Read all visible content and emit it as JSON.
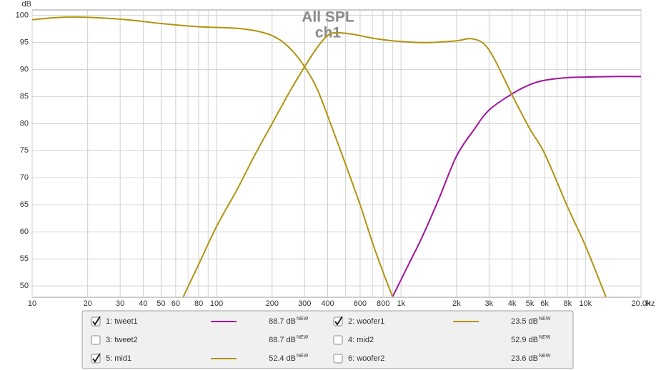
{
  "chart_data": {
    "type": "line",
    "title": "All SPL",
    "subtitle": "ch1",
    "y_label": "dB",
    "x_label": "Hz",
    "log_x": true,
    "grid": true,
    "xlim": [
      10,
      20000
    ],
    "ylim": [
      47.9,
      101
    ],
    "yticks": [
      50,
      55,
      60,
      65,
      70,
      75,
      80,
      85,
      90,
      95,
      100
    ],
    "xticks": [
      10,
      20,
      30,
      40,
      50,
      60,
      80,
      100,
      200,
      300,
      400,
      600,
      800,
      {
        "value": 1000,
        "label": "1k"
      },
      {
        "value": 2000,
        "label": "2k"
      },
      {
        "value": 3000,
        "label": "3k"
      },
      {
        "value": 4000,
        "label": "4k"
      },
      {
        "value": 5000,
        "label": "5k"
      },
      {
        "value": 6000,
        "label": "6k"
      },
      {
        "value": 8000,
        "label": "8k"
      },
      {
        "value": 10000,
        "label": "10k"
      },
      {
        "value": 20000,
        "label": "20.0k"
      }
    ],
    "x_minor_ticks": [
      70,
      90,
      500,
      700,
      900,
      7000,
      9000
    ],
    "series": [
      {
        "name": "1: tweet1",
        "checked": true,
        "color": "#a0139f",
        "level": "88.7 dB",
        "badge": "NEW",
        "x": [
          900,
          1100,
          1300,
          1600,
          2000,
          2500,
          3000,
          4000,
          5000,
          6000,
          8000,
          10000,
          14000,
          20000
        ],
        "values": [
          48,
          54,
          59,
          66,
          74,
          79,
          82.5,
          85.5,
          87.2,
          88,
          88.5,
          88.6,
          88.7,
          88.7
        ]
      },
      {
        "name": "2: woofer1",
        "checked": true,
        "color": "#b09410",
        "level": "23.5 dB",
        "badge": "NEW",
        "x": [
          10,
          16,
          30,
          50,
          80,
          130,
          180,
          220,
          260,
          300,
          350,
          420,
          500,
          600,
          700,
          800,
          900
        ],
        "values": [
          99.2,
          99.7,
          99.3,
          98.5,
          97.9,
          97.6,
          96.8,
          95.5,
          93.3,
          90.5,
          86.5,
          79.5,
          72.5,
          65,
          58,
          52.5,
          48
        ]
      },
      {
        "name": "3: tweet2",
        "checked": false,
        "color": "#34a04a",
        "level": "88.7 dB",
        "badge": "NEW"
      },
      {
        "name": "4: mid2",
        "checked": false,
        "color": "#2e8a2e",
        "level": "52.9 dB",
        "badge": "NEW"
      },
      {
        "name": "5: mid1",
        "checked": true,
        "color": "#b09410",
        "level": "52.4 dB",
        "badge": "NEW",
        "x": [
          66,
          80,
          100,
          130,
          160,
          200,
          250,
          300,
          350,
          400,
          450,
          550,
          700,
          900,
          1200,
          1500,
          2000,
          2400,
          2800,
          3200,
          4000,
          5000,
          6000,
          8000,
          10000,
          12900
        ],
        "values": [
          48,
          54,
          61,
          68,
          74,
          80,
          86,
          90.5,
          94,
          96.3,
          96.8,
          96.5,
          95.8,
          95.3,
          95,
          95,
          95.3,
          95.7,
          94.8,
          92,
          85.3,
          79,
          74.5,
          64.6,
          57.4,
          48
        ]
      },
      {
        "name": "6: woofer2",
        "checked": false,
        "color": "#2a8090",
        "level": "23.6 dB",
        "badge": "NEW"
      }
    ]
  }
}
